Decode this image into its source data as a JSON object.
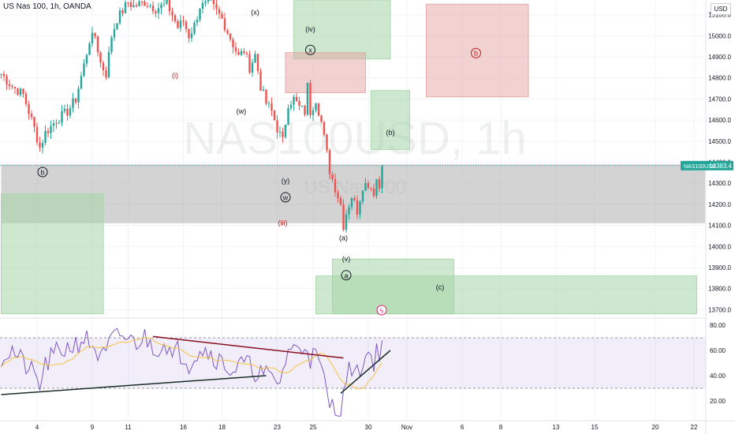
{
  "header": {
    "symbol_line": "US Nas 100, 1h, OANDA"
  },
  "currency_label": "USD",
  "colors": {
    "up": "#26a69a",
    "down": "#ef5350",
    "rsi": "#7e57c2",
    "rsi_ma": "#f5c242",
    "gray_zone": "#9e9e9e",
    "green_zone": "#a5d6a7",
    "red_zone": "#e6a3a3",
    "price_tag": "#26a69a",
    "wave_red": "#b71c1c",
    "wave_dark": "#131722"
  },
  "watermark": {
    "main": "NAS100USD, 1h",
    "sub": "US Nas 100"
  },
  "price_tag": {
    "symbol": "NAS100USD",
    "value": "14383.4"
  },
  "wave_labels": [
    {
      "text": "(x)",
      "price": 15100,
      "idx": 92,
      "color": "dark"
    },
    {
      "text": "(iv)",
      "price": 15020,
      "idx": 112,
      "color": "dark"
    },
    {
      "text": "x",
      "price": 14920,
      "idx": 112,
      "color": "dark",
      "circled": true
    },
    {
      "text": "(i)",
      "price": 14800,
      "idx": 63,
      "color": "red"
    },
    {
      "text": "(w)",
      "price": 14630,
      "idx": 87,
      "color": "dark"
    },
    {
      "text": "(b)",
      "price": 14530,
      "idx": 141,
      "color": "dark"
    },
    {
      "text": "b",
      "price": 14340,
      "idx": 15,
      "color": "dark",
      "circled": true
    },
    {
      "text": "(y)",
      "price": 14300,
      "idx": 103,
      "color": "dark"
    },
    {
      "text": "w",
      "price": 14220,
      "idx": 103,
      "color": "dark",
      "circled": true
    },
    {
      "text": "(iii)",
      "price": 14100,
      "idx": 102,
      "color": "red"
    },
    {
      "text": "(a)",
      "price": 14030,
      "idx": 124,
      "color": "dark"
    },
    {
      "text": "(v)",
      "price": 13930,
      "idx": 125,
      "color": "dark"
    },
    {
      "text": "a",
      "price": 13850,
      "idx": 125,
      "color": "dark",
      "circled": true
    },
    {
      "text": "(c)",
      "price": 13795,
      "idx": 159,
      "color": "dark"
    },
    {
      "text": "b",
      "price": 14905,
      "idx": 172,
      "color": "red",
      "circled": true
    }
  ],
  "chart_data": [
    {
      "type": "candlestick",
      "title": "US Nas 100, 1h, OANDA",
      "x_axis": {
        "tick_labels": [
          "4",
          "9",
          "11",
          "16",
          "18",
          "23",
          "25",
          "30",
          "Nov",
          "6",
          "8",
          "13",
          "15",
          "20",
          "22"
        ],
        "tick_index": [
          13,
          33,
          46,
          66,
          80,
          100,
          113,
          133,
          147,
          167,
          181,
          201,
          215,
          237,
          251
        ]
      },
      "y_axis": {
        "ticks": [
          13700,
          13800,
          13900,
          14000,
          14100,
          14200,
          14300,
          14400,
          14500,
          14600,
          14700,
          14800,
          14900,
          15000,
          15100
        ],
        "tick_labels": [
          "13700.0",
          "13800.0",
          "13900.0",
          "14000.0",
          "14100.0",
          "14200.0",
          "14300.0",
          "14400.0",
          "14500.0",
          "14600.0",
          "14700.0",
          "14800.0",
          "14900.0",
          "15000.0",
          "15100.0"
        ],
        "range": [
          13660,
          15170
        ],
        "position": "right"
      },
      "ohlc_close_path": [
        [
          0,
          14820
        ],
        [
          4,
          14760
        ],
        [
          8,
          14720
        ],
        [
          12,
          14560
        ],
        [
          14,
          14470
        ],
        [
          16,
          14540
        ],
        [
          20,
          14600
        ],
        [
          24,
          14640
        ],
        [
          27,
          14700
        ],
        [
          30,
          14860
        ],
        [
          32,
          14980
        ],
        [
          34,
          15000
        ],
        [
          36,
          14870
        ],
        [
          38,
          14820
        ],
        [
          40,
          15000
        ],
        [
          42,
          15080
        ],
        [
          44,
          15120
        ],
        [
          46,
          15160
        ],
        [
          48,
          15140
        ],
        [
          52,
          15160
        ],
        [
          56,
          15130
        ],
        [
          60,
          15150
        ],
        [
          62,
          15100
        ],
        [
          64,
          15040
        ],
        [
          66,
          15070
        ],
        [
          68,
          15000
        ],
        [
          70,
          15050
        ],
        [
          72,
          15140
        ],
        [
          76,
          15150
        ],
        [
          80,
          15080
        ],
        [
          82,
          15020
        ],
        [
          84,
          14960
        ],
        [
          86,
          14900
        ],
        [
          88,
          14930
        ],
        [
          90,
          14850
        ],
        [
          92,
          14910
        ],
        [
          94,
          14760
        ],
        [
          96,
          14680
        ],
        [
          98,
          14640
        ],
        [
          100,
          14560
        ],
        [
          102,
          14500
        ],
        [
          104,
          14680
        ],
        [
          106,
          14700
        ],
        [
          108,
          14660
        ],
        [
          110,
          14640
        ],
        [
          111,
          14760
        ],
        [
          112,
          14640
        ],
        [
          114,
          14700
        ],
        [
          116,
          14590
        ],
        [
          118,
          14440
        ],
        [
          119,
          14360
        ],
        [
          121,
          14280
        ],
        [
          123,
          14200
        ],
        [
          124,
          14100
        ],
        [
          125,
          14160
        ],
        [
          127,
          14240
        ],
        [
          129,
          14170
        ],
        [
          131,
          14290
        ],
        [
          133,
          14300
        ],
        [
          135,
          14260
        ],
        [
          136,
          14320
        ],
        [
          137,
          14280
        ],
        [
          138,
          14383.4
        ]
      ],
      "last_price": 14383.4,
      "zones": [
        {
          "kind": "gray",
          "idx_from": 0,
          "idx_to": 255,
          "price_from": 14110,
          "price_to": 14390
        },
        {
          "kind": "green",
          "idx_from": 0,
          "idx_to": 37,
          "price_from": 13680,
          "price_to": 14250
        },
        {
          "kind": "green",
          "idx_from": 106,
          "idx_to": 141,
          "price_from": 14890,
          "price_to": 15170
        },
        {
          "kind": "red",
          "idx_from": 103,
          "idx_to": 132,
          "price_from": 14730,
          "price_to": 14920
        },
        {
          "kind": "green",
          "idx_from": 134,
          "idx_to": 148,
          "price_from": 14460,
          "price_to": 14740
        },
        {
          "kind": "red",
          "idx_from": 154,
          "idx_to": 191,
          "price_from": 14710,
          "price_to": 15150
        },
        {
          "kind": "green",
          "idx_from": 120,
          "idx_to": 164,
          "price_from": 13680,
          "price_to": 13940
        },
        {
          "kind": "green",
          "idx_from": 114,
          "idx_to": 252,
          "price_from": 13680,
          "price_to": 13860
        }
      ]
    },
    {
      "type": "line",
      "title": "RSI",
      "y_axis": {
        "ticks": [
          20,
          40,
          60,
          80
        ],
        "tick_labels": [
          "20.00",
          "40.00",
          "60.00",
          "80.00"
        ],
        "range": [
          5,
          85
        ]
      },
      "band": [
        30,
        70
      ],
      "rsi_path": [
        [
          0,
          55
        ],
        [
          4,
          60
        ],
        [
          8,
          50
        ],
        [
          12,
          40
        ],
        [
          14,
          32
        ],
        [
          16,
          48
        ],
        [
          20,
          58
        ],
        [
          24,
          62
        ],
        [
          28,
          66
        ],
        [
          30,
          70
        ],
        [
          34,
          62
        ],
        [
          36,
          52
        ],
        [
          38,
          58
        ],
        [
          40,
          68
        ],
        [
          44,
          72
        ],
        [
          48,
          66
        ],
        [
          52,
          70
        ],
        [
          56,
          62
        ],
        [
          60,
          66
        ],
        [
          62,
          52
        ],
        [
          64,
          60
        ],
        [
          66,
          56
        ],
        [
          68,
          50
        ],
        [
          72,
          62
        ],
        [
          76,
          58
        ],
        [
          80,
          50
        ],
        [
          84,
          44
        ],
        [
          88,
          50
        ],
        [
          92,
          44
        ],
        [
          96,
          40
        ],
        [
          100,
          34
        ],
        [
          102,
          42
        ],
        [
          104,
          62
        ],
        [
          106,
          60
        ],
        [
          110,
          64
        ],
        [
          111,
          66
        ],
        [
          112,
          54
        ],
        [
          114,
          56
        ],
        [
          116,
          44
        ],
        [
          118,
          26
        ],
        [
          119,
          18
        ],
        [
          121,
          14
        ],
        [
          123,
          16
        ],
        [
          124,
          22
        ],
        [
          125,
          38
        ],
        [
          127,
          48
        ],
        [
          129,
          40
        ],
        [
          131,
          52
        ],
        [
          133,
          58
        ],
        [
          135,
          52
        ],
        [
          136,
          62
        ],
        [
          137,
          56
        ],
        [
          138,
          68
        ]
      ],
      "trendlines": [
        {
          "from": [
            0,
            25
          ],
          "to": [
            96,
            40
          ],
          "color": "dark"
        },
        {
          "from": [
            55,
            71
          ],
          "to": [
            124,
            54
          ],
          "color": "red"
        },
        {
          "from": [
            123,
            26
          ],
          "to": [
            141,
            60
          ],
          "color": "dark"
        }
      ]
    }
  ]
}
